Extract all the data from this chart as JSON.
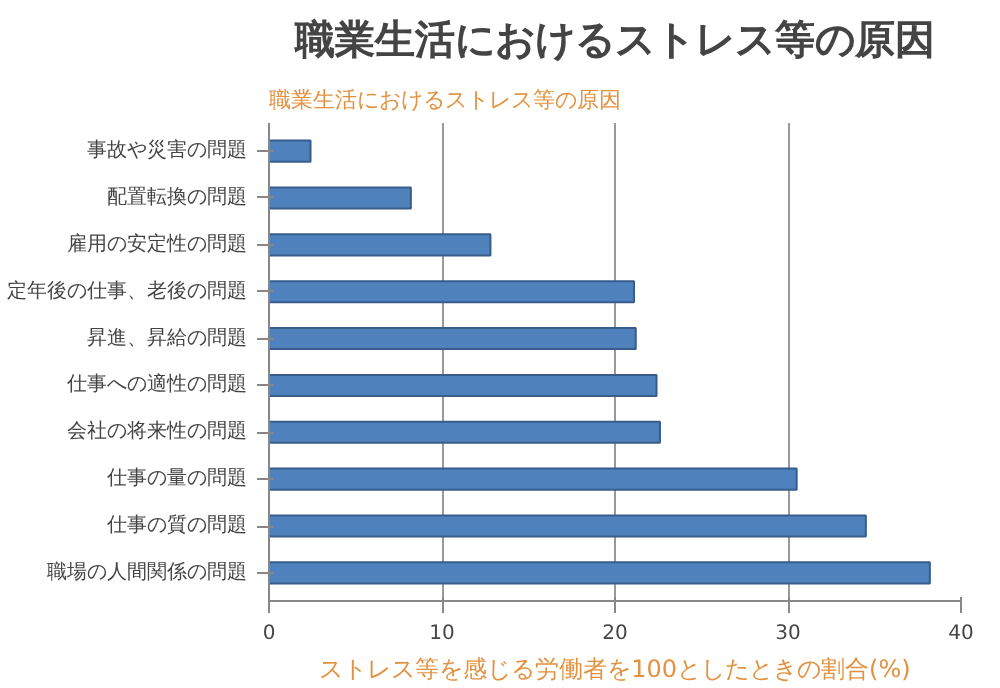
{
  "chart_data": {
    "type": "bar",
    "orientation": "horizontal",
    "title": "職業生活におけるストレス等の原因",
    "subtitle": "職業生活におけるストレス等の原因",
    "xlabel": "ストレス等を感じる労働者を100としたときの割合(%)",
    "categories": [
      "事故や災害の問題",
      "配置転換の問題",
      "雇用の安定性の問題",
      "定年後の仕事、老後の問題",
      "昇進、昇給の問題",
      "仕事への適性の問題",
      "会社の将来性の問題",
      "仕事の量の問題",
      "仕事の質の問題",
      "職場の人間関係の問題"
    ],
    "values": [
      2.4,
      8.2,
      12.8,
      21.1,
      21.2,
      22.4,
      22.6,
      30.5,
      34.5,
      38.2
    ],
    "color": "#4f81bd",
    "xlim": [
      0,
      40
    ],
    "xticks": [
      0,
      10,
      20,
      30,
      40
    ],
    "grid": "x"
  }
}
